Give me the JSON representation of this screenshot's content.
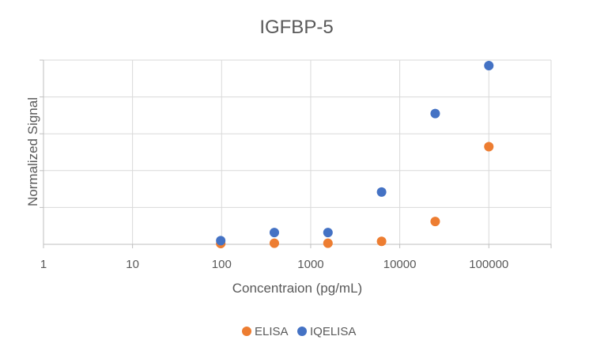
{
  "chart_data": {
    "type": "scatter",
    "title": "IGFBP-5",
    "xlabel": "Concentraion (pg/mL)",
    "ylabel": "Normalized Signal",
    "xscale": "log10",
    "xlim": [
      1,
      500000
    ],
    "ylim": [
      0,
      5
    ],
    "grid": true,
    "x_tick_labels": [
      "1",
      "10",
      "100",
      "1000",
      "10000",
      "100000"
    ],
    "x_tick_values": [
      1,
      10,
      100,
      1000,
      10000,
      100000
    ],
    "legend_position": "bottom",
    "series": [
      {
        "name": "ELISA",
        "color": "#ED7D31",
        "x": [
          97.7,
          390.6,
          1562.5,
          6250,
          25000,
          100000
        ],
        "y": [
          0.02,
          0.03,
          0.03,
          0.08,
          0.62,
          2.65
        ]
      },
      {
        "name": "IQELISA",
        "color": "#4472C4",
        "x": [
          97.7,
          390.6,
          1562.5,
          6250,
          25000,
          100000
        ],
        "y": [
          0.1,
          0.32,
          0.32,
          1.42,
          3.55,
          4.85
        ]
      }
    ]
  }
}
